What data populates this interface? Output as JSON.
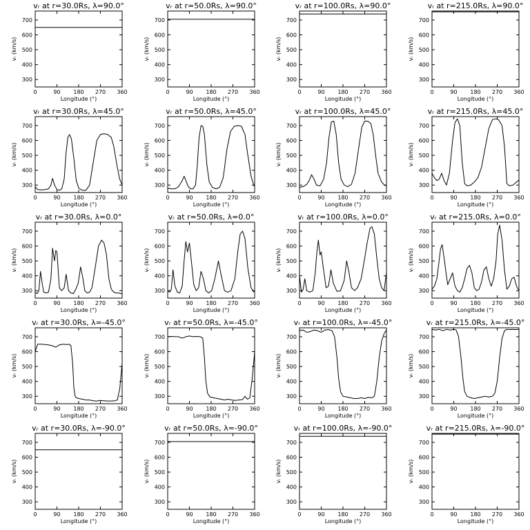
{
  "chart_data": [
    {
      "type": "line",
      "title": "vᵣ at r=30.0Rs, λ=90.0°",
      "xlabel": "Longitude (°)",
      "ylabel": "vᵣ (km/s)",
      "xlim": [
        0,
        360
      ],
      "ylim": [
        250,
        760
      ],
      "xticks": [
        0,
        90,
        180,
        270,
        360
      ],
      "yticks": [
        300,
        400,
        500,
        600,
        700
      ],
      "x": [
        0,
        360
      ],
      "y": [
        650,
        650
      ]
    },
    {
      "type": "line",
      "title": "vᵣ at r=50.0Rs, λ=90.0°",
      "xlabel": "Longitude (°)",
      "ylabel": "vᵣ (km/s)",
      "xlim": [
        0,
        360
      ],
      "ylim": [
        250,
        760
      ],
      "xticks": [
        0,
        90,
        180,
        270,
        360
      ],
      "yticks": [
        300,
        400,
        500,
        600,
        700
      ],
      "x": [
        0,
        360
      ],
      "y": [
        705,
        705
      ]
    },
    {
      "type": "line",
      "title": "vᵣ at r=100.0Rs, λ=90.0°",
      "xlabel": "Longitude (°)",
      "ylabel": "vᵣ (km/s)",
      "xlim": [
        0,
        360
      ],
      "ylim": [
        250,
        760
      ],
      "xticks": [
        0,
        90,
        180,
        270,
        360
      ],
      "yticks": [
        300,
        400,
        500,
        600,
        700
      ],
      "x": [
        0,
        360
      ],
      "y": [
        740,
        740
      ]
    },
    {
      "type": "line",
      "title": "vᵣ at r=215.0Rs, λ=90.0°",
      "xlabel": "Longitude (°)",
      "ylabel": "vᵣ (km/s)",
      "xlim": [
        0,
        360
      ],
      "ylim": [
        250,
        760
      ],
      "xticks": [
        0,
        90,
        180,
        270,
        360
      ],
      "yticks": [
        300,
        400,
        500,
        600,
        700
      ],
      "x": [
        0,
        360
      ],
      "y": [
        755,
        755
      ]
    },
    {
      "type": "line",
      "title": "vᵣ at r=30.0Rs, λ=45.0°",
      "xlabel": "Longitude (°)",
      "ylabel": "vᵣ (km/s)",
      "xlim": [
        0,
        360
      ],
      "ylim": [
        250,
        760
      ],
      "xticks": [
        0,
        90,
        180,
        270,
        360
      ],
      "yticks": [
        300,
        400,
        500,
        600,
        700
      ],
      "x": [
        0,
        10,
        25,
        40,
        55,
        65,
        72,
        80,
        90,
        100,
        110,
        120,
        128,
        135,
        142,
        150,
        160,
        170,
        180,
        195,
        210,
        225,
        240,
        255,
        270,
        285,
        300,
        315,
        325,
        340,
        350,
        360
      ],
      "y": [
        290,
        270,
        268,
        270,
        275,
        300,
        345,
        300,
        270,
        265,
        275,
        340,
        520,
        620,
        640,
        610,
        480,
        330,
        280,
        265,
        265,
        300,
        450,
        600,
        640,
        645,
        640,
        620,
        560,
        420,
        340,
        300
      ]
    },
    {
      "type": "line",
      "title": "vᵣ at r=50.0Rs, λ=45.0°",
      "xlabel": "Longitude (°)",
      "ylabel": "vᵣ (km/s)",
      "xlim": [
        0,
        360
      ],
      "ylim": [
        250,
        760
      ],
      "xticks": [
        0,
        90,
        180,
        270,
        360
      ],
      "yticks": [
        300,
        400,
        500,
        600,
        700
      ],
      "x": [
        0,
        15,
        30,
        45,
        60,
        68,
        75,
        85,
        95,
        105,
        115,
        122,
        130,
        138,
        145,
        152,
        162,
        172,
        185,
        200,
        215,
        230,
        245,
        260,
        275,
        290,
        305,
        320,
        330,
        345,
        355,
        360
      ],
      "y": [
        280,
        275,
        275,
        290,
        330,
        360,
        330,
        290,
        275,
        275,
        300,
        420,
        620,
        700,
        695,
        640,
        440,
        320,
        285,
        275,
        285,
        350,
        540,
        660,
        695,
        700,
        695,
        640,
        520,
        360,
        305,
        290
      ]
    },
    {
      "type": "line",
      "title": "vᵣ at r=100.0Rs, λ=45.0°",
      "xlabel": "Longitude (°)",
      "ylabel": "vᵣ (km/s)",
      "xlim": [
        0,
        360
      ],
      "ylim": [
        250,
        760
      ],
      "xticks": [
        0,
        90,
        180,
        270,
        360
      ],
      "yticks": [
        300,
        400,
        500,
        600,
        700
      ],
      "x": [
        0,
        15,
        30,
        40,
        50,
        60,
        70,
        85,
        100,
        112,
        122,
        132,
        142,
        152,
        162,
        172,
        185,
        200,
        215,
        230,
        245,
        258,
        270,
        282,
        295,
        305,
        315,
        325,
        340,
        352,
        360
      ],
      "y": [
        285,
        290,
        305,
        330,
        370,
        340,
        300,
        295,
        340,
        450,
        620,
        725,
        730,
        640,
        450,
        340,
        300,
        290,
        305,
        380,
        550,
        690,
        730,
        730,
        715,
        640,
        500,
        380,
        320,
        300,
        295
      ]
    },
    {
      "type": "line",
      "title": "vᵣ at r=215.0Rs, λ=45.0°",
      "xlabel": "Longitude (°)",
      "ylabel": "vᵣ (km/s)",
      "xlim": [
        0,
        360
      ],
      "ylim": [
        250,
        760
      ],
      "xticks": [
        0,
        90,
        180,
        270,
        360
      ],
      "yticks": [
        300,
        400,
        500,
        600,
        700
      ],
      "x": [
        0,
        10,
        20,
        30,
        40,
        50,
        60,
        72,
        85,
        95,
        105,
        115,
        125,
        135,
        145,
        160,
        175,
        190,
        205,
        220,
        235,
        250,
        262,
        275,
        290,
        300,
        310,
        320,
        335,
        350,
        360
      ],
      "y": [
        380,
        350,
        330,
        340,
        380,
        330,
        300,
        380,
        600,
        720,
        745,
        700,
        450,
        310,
        295,
        300,
        320,
        350,
        420,
        550,
        680,
        740,
        745,
        740,
        700,
        560,
        310,
        295,
        300,
        320,
        335
      ]
    },
    {
      "type": "line",
      "title": "vᵣ at r=30.0Rs, λ=0.0°",
      "xlabel": "Longitude (°)",
      "ylabel": "vᵣ (km/s)",
      "xlim": [
        0,
        360
      ],
      "ylim": [
        250,
        760
      ],
      "xticks": [
        0,
        90,
        180,
        270,
        360
      ],
      "yticks": [
        300,
        400,
        500,
        600,
        700
      ],
      "x": [
        0,
        8,
        15,
        22,
        28,
        35,
        45,
        55,
        65,
        72,
        80,
        85,
        90,
        95,
        100,
        110,
        120,
        128,
        138,
        148,
        158,
        168,
        178,
        188,
        198,
        205,
        215,
        225,
        235,
        248,
        262,
        275,
        285,
        295,
        305,
        315,
        325,
        335,
        345,
        355,
        360
      ],
      "y": [
        290,
        280,
        300,
        430,
        360,
        290,
        285,
        290,
        380,
        585,
        500,
        570,
        560,
        440,
        320,
        300,
        320,
        410,
        300,
        285,
        280,
        310,
        350,
        460,
        380,
        300,
        285,
        290,
        320,
        450,
        600,
        640,
        620,
        540,
        380,
        310,
        290,
        285,
        285,
        280,
        280
      ]
    },
    {
      "type": "line",
      "title": "vᵣ at r=50.0Rs, λ=0.0°",
      "xlabel": "Longitude (°)",
      "ylabel": "vᵣ (km/s)",
      "xlim": [
        0,
        360
      ],
      "ylim": [
        250,
        760
      ],
      "xticks": [
        0,
        90,
        180,
        270,
        360
      ],
      "yticks": [
        300,
        400,
        500,
        600,
        700
      ],
      "x": [
        0,
        8,
        15,
        22,
        30,
        40,
        50,
        60,
        68,
        75,
        82,
        90,
        98,
        108,
        118,
        128,
        138,
        148,
        158,
        170,
        182,
        195,
        210,
        222,
        235,
        248,
        262,
        278,
        290,
        300,
        310,
        320,
        332,
        345,
        355,
        360
      ],
      "y": [
        300,
        290,
        310,
        440,
        330,
        290,
        285,
        330,
        500,
        630,
        560,
        620,
        500,
        340,
        300,
        320,
        430,
        380,
        300,
        285,
        300,
        380,
        500,
        400,
        300,
        290,
        300,
        380,
        560,
        680,
        700,
        650,
        450,
        320,
        295,
        290
      ]
    },
    {
      "type": "line",
      "title": "vᵣ at r=100.0Rs, λ=0.0°",
      "xlabel": "Longitude (°)",
      "ylabel": "vᵣ (km/s)",
      "xlim": [
        0,
        360
      ],
      "ylim": [
        250,
        760
      ],
      "xticks": [
        0,
        90,
        180,
        270,
        360
      ],
      "yticks": [
        300,
        400,
        500,
        600,
        700
      ],
      "x": [
        0,
        8,
        15,
        22,
        30,
        42,
        55,
        65,
        72,
        78,
        85,
        90,
        98,
        110,
        120,
        130,
        140,
        155,
        170,
        185,
        195,
        205,
        215,
        228,
        240,
        255,
        268,
        280,
        292,
        300,
        310,
        320,
        330,
        340,
        350,
        360
      ],
      "y": [
        400,
        290,
        310,
        380,
        300,
        290,
        300,
        420,
        560,
        640,
        540,
        560,
        460,
        320,
        330,
        440,
        350,
        295,
        300,
        370,
        500,
        420,
        320,
        300,
        320,
        380,
        500,
        620,
        720,
        730,
        680,
        520,
        380,
        320,
        300,
        420
      ]
    },
    {
      "type": "line",
      "title": "vᵣ at r=215.0Rs, λ=0.0°",
      "xlabel": "Longitude (°)",
      "ylabel": "vᵣ (km/s)",
      "xlim": [
        0,
        360
      ],
      "ylim": [
        250,
        760
      ],
      "xticks": [
        0,
        90,
        180,
        270,
        360
      ],
      "yticks": [
        300,
        400,
        500,
        600,
        700
      ],
      "x": [
        0,
        10,
        20,
        28,
        35,
        42,
        50,
        58,
        65,
        75,
        85,
        95,
        105,
        115,
        125,
        135,
        145,
        155,
        165,
        175,
        185,
        195,
        205,
        215,
        225,
        235,
        245,
        255,
        265,
        272,
        280,
        290,
        300,
        310,
        320,
        330,
        340,
        350,
        360
      ],
      "y": [
        310,
        330,
        380,
        480,
        580,
        610,
        520,
        420,
        340,
        380,
        420,
        330,
        300,
        290,
        320,
        380,
        450,
        470,
        420,
        320,
        300,
        310,
        360,
        440,
        460,
        380,
        330,
        380,
        500,
        680,
        740,
        640,
        440,
        310,
        330,
        380,
        390,
        330,
        300
      ]
    },
    {
      "type": "line",
      "title": "vᵣ at r=30.0Rs, λ=-45.0°",
      "xlabel": "Longitude (°)",
      "ylabel": "vᵣ (km/s)",
      "xlim": [
        0,
        360
      ],
      "ylim": [
        250,
        760
      ],
      "xticks": [
        0,
        90,
        180,
        270,
        360
      ],
      "yticks": [
        300,
        400,
        500,
        600,
        700
      ],
      "x": [
        0,
        10,
        25,
        40,
        55,
        70,
        85,
        100,
        115,
        130,
        140,
        148,
        155,
        160,
        165,
        170,
        180,
        195,
        210,
        225,
        240,
        255,
        270,
        285,
        300,
        315,
        330,
        340,
        350,
        360
      ],
      "y": [
        600,
        650,
        650,
        648,
        645,
        640,
        630,
        645,
        650,
        648,
        650,
        640,
        520,
        360,
        300,
        290,
        285,
        280,
        275,
        275,
        270,
        268,
        272,
        270,
        268,
        268,
        270,
        275,
        350,
        520
      ]
    },
    {
      "type": "line",
      "title": "vᵣ at r=50.0Rs, λ=-45.0°",
      "xlabel": "Longitude (°)",
      "ylabel": "vᵣ (km/s)",
      "xlim": [
        0,
        360
      ],
      "ylim": [
        250,
        760
      ],
      "xticks": [
        0,
        90,
        180,
        270,
        360
      ],
      "yticks": [
        300,
        400,
        500,
        600,
        700
      ],
      "x": [
        0,
        15,
        30,
        45,
        60,
        75,
        90,
        105,
        120,
        135,
        145,
        152,
        158,
        165,
        175,
        190,
        205,
        220,
        235,
        250,
        265,
        280,
        295,
        310,
        320,
        330,
        340,
        350,
        360
      ],
      "y": [
        700,
        702,
        700,
        700,
        690,
        700,
        705,
        700,
        702,
        700,
        690,
        560,
        400,
        320,
        295,
        290,
        285,
        280,
        275,
        280,
        275,
        272,
        275,
        278,
        300,
        280,
        290,
        420,
        600
      ]
    },
    {
      "type": "line",
      "title": "vᵣ at r=100.0Rs, λ=-45.0°",
      "xlabel": "Longitude (°)",
      "ylabel": "vᵣ (km/s)",
      "xlim": [
        0,
        360
      ],
      "ylim": [
        250,
        760
      ],
      "xticks": [
        0,
        90,
        180,
        270,
        360
      ],
      "yticks": [
        300,
        400,
        500,
        600,
        700
      ],
      "x": [
        0,
        15,
        30,
        45,
        60,
        75,
        90,
        105,
        120,
        135,
        145,
        155,
        162,
        170,
        180,
        195,
        210,
        225,
        240,
        255,
        270,
        285,
        300,
        310,
        320,
        330,
        340,
        350,
        360
      ],
      "y": [
        740,
        745,
        730,
        735,
        745,
        740,
        730,
        745,
        748,
        740,
        700,
        560,
        420,
        330,
        300,
        295,
        290,
        285,
        285,
        290,
        285,
        292,
        290,
        300,
        400,
        560,
        670,
        720,
        745
      ]
    },
    {
      "type": "line",
      "title": "vᵣ at r=215.0Rs, λ=-45.0°",
      "xlabel": "Longitude (°)",
      "ylabel": "vᵣ (km/s)",
      "xlim": [
        0,
        360
      ],
      "ylim": [
        250,
        760
      ],
      "xticks": [
        0,
        90,
        180,
        270,
        360
      ],
      "yticks": [
        300,
        400,
        500,
        600,
        700
      ],
      "x": [
        0,
        15,
        30,
        45,
        60,
        75,
        90,
        100,
        110,
        120,
        128,
        135,
        145,
        160,
        175,
        190,
        205,
        220,
        235,
        250,
        260,
        270,
        280,
        290,
        300,
        310,
        320,
        330,
        345,
        360
      ],
      "y": [
        750,
        745,
        750,
        740,
        750,
        745,
        750,
        745,
        700,
        560,
        420,
        330,
        300,
        290,
        285,
        290,
        295,
        300,
        295,
        300,
        320,
        400,
        560,
        690,
        740,
        750,
        748,
        750,
        748,
        750
      ]
    },
    {
      "type": "line",
      "title": "vᵣ at r=30.0Rs, λ=-90.0°",
      "xlabel": "Longitude (°)",
      "ylabel": "vᵣ (km/s)",
      "xlim": [
        0,
        360
      ],
      "ylim": [
        250,
        760
      ],
      "xticks": [
        0,
        90,
        180,
        270,
        360
      ],
      "yticks": [
        300,
        400,
        500,
        600,
        700
      ],
      "x": [
        0,
        360
      ],
      "y": [
        650,
        650
      ]
    },
    {
      "type": "line",
      "title": "vᵣ at r=50.0Rs, λ=-90.0°",
      "xlabel": "Longitude (°)",
      "ylabel": "vᵣ (km/s)",
      "xlim": [
        0,
        360
      ],
      "ylim": [
        250,
        760
      ],
      "xticks": [
        0,
        90,
        180,
        270,
        360
      ],
      "yticks": [
        300,
        400,
        500,
        600,
        700
      ],
      "x": [
        0,
        360
      ],
      "y": [
        705,
        705
      ]
    },
    {
      "type": "line",
      "title": "vᵣ at r=100.0Rs, λ=-90.0°",
      "xlabel": "Longitude (°)",
      "ylabel": "vᵣ (km/s)",
      "xlim": [
        0,
        360
      ],
      "ylim": [
        250,
        760
      ],
      "xticks": [
        0,
        90,
        180,
        270,
        360
      ],
      "yticks": [
        300,
        400,
        500,
        600,
        700
      ],
      "x": [
        0,
        360
      ],
      "y": [
        740,
        740
      ]
    },
    {
      "type": "line",
      "title": "vᵣ at r=215.0Rs, λ=-90.0°",
      "xlabel": "Longitude (°)",
      "ylabel": "vᵣ (km/s)",
      "xlim": [
        0,
        360
      ],
      "ylim": [
        250,
        760
      ],
      "xticks": [
        0,
        90,
        180,
        270,
        360
      ],
      "yticks": [
        300,
        400,
        500,
        600,
        700
      ],
      "x": [
        0,
        360
      ],
      "y": [
        755,
        755
      ]
    }
  ]
}
